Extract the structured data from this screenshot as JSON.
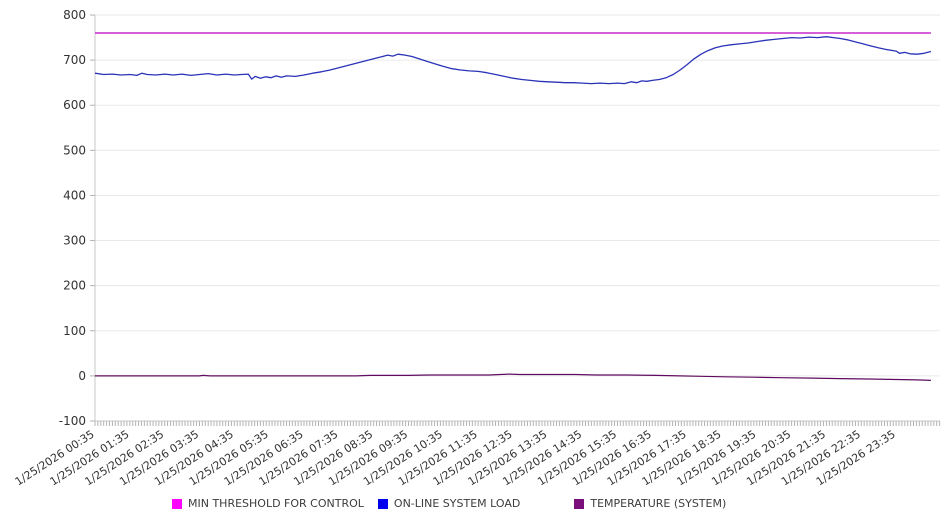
{
  "colors": {
    "background": "#ffffff",
    "grid": "#eaeaea",
    "axis_line": "#c9c9c9",
    "tick": "#b3b3b3",
    "axis_text": "#333333",
    "legend_text": "#3c3c3c"
  },
  "chart_data": {
    "type": "line",
    "title": "",
    "xlabel": "",
    "ylabel": "",
    "grid": "horizontal",
    "legend_position": "bottom",
    "x_axis": {
      "unit": "hours_from_first_label",
      "range_hours": [
        0,
        24.26
      ],
      "minor_tick_interval_minutes": 5,
      "angle_degrees": -33,
      "labels": [
        "1/25/2026 00:35",
        "1/25/2026 01:35",
        "1/25/2026 02:35",
        "1/25/2026 03:35",
        "1/25/2026 04:35",
        "1/25/2026 05:35",
        "1/25/2026 06:35",
        "1/25/2026 07:35",
        "1/25/2026 08:35",
        "1/25/2026 09:35",
        "1/25/2026 10:35",
        "1/25/2026 11:35",
        "1/25/2026 12:35",
        "1/25/2026 13:35",
        "1/25/2026 14:35",
        "1/25/2026 15:35",
        "1/25/2026 16:35",
        "1/25/2026 17:35",
        "1/25/2026 18:35",
        "1/25/2026 19:35",
        "1/25/2026 20:35",
        "1/25/2026 21:35",
        "1/25/2026 22:35",
        "1/25/2026 23:35"
      ]
    },
    "y_axis": {
      "min": -100,
      "max": 800,
      "tick_step": 100,
      "tick_labels": [
        "800",
        "700",
        "600",
        "500",
        "400",
        "300",
        "200",
        "100",
        "0",
        "-100"
      ]
    },
    "series": [
      {
        "name": "MIN THRESHOLD FOR CONTROL",
        "color": "#c92acc",
        "legend_color": "#ff00ff",
        "points": [
          [
            0,
            760
          ],
          [
            24,
            760
          ]
        ]
      },
      {
        "name": "ON-LINE SYSTEM LOAD",
        "color": "#2a33b8",
        "legend_color": "#0000ee",
        "points": [
          [
            0,
            671
          ],
          [
            0.25,
            668
          ],
          [
            0.5,
            669
          ],
          [
            0.75,
            667
          ],
          [
            1,
            668
          ],
          [
            1.2,
            666
          ],
          [
            1.35,
            671
          ],
          [
            1.5,
            668
          ],
          [
            1.75,
            667
          ],
          [
            2,
            669
          ],
          [
            2.25,
            667
          ],
          [
            2.5,
            669
          ],
          [
            2.75,
            666
          ],
          [
            3,
            668
          ],
          [
            3.25,
            670
          ],
          [
            3.5,
            667
          ],
          [
            3.75,
            669
          ],
          [
            4,
            667
          ],
          [
            4.2,
            668
          ],
          [
            4.4,
            669
          ],
          [
            4.5,
            658
          ],
          [
            4.6,
            664
          ],
          [
            4.75,
            660
          ],
          [
            4.9,
            663
          ],
          [
            5.05,
            661
          ],
          [
            5.2,
            665
          ],
          [
            5.35,
            662
          ],
          [
            5.5,
            665
          ],
          [
            5.75,
            664
          ],
          [
            6,
            667
          ],
          [
            6.25,
            671
          ],
          [
            6.5,
            674
          ],
          [
            6.75,
            678
          ],
          [
            7,
            683
          ],
          [
            7.25,
            688
          ],
          [
            7.5,
            693
          ],
          [
            7.75,
            698
          ],
          [
            8,
            703
          ],
          [
            8.2,
            707
          ],
          [
            8.4,
            711
          ],
          [
            8.55,
            709
          ],
          [
            8.7,
            713
          ],
          [
            8.9,
            711
          ],
          [
            9.1,
            708
          ],
          [
            9.3,
            703
          ],
          [
            9.5,
            698
          ],
          [
            9.75,
            692
          ],
          [
            10,
            686
          ],
          [
            10.25,
            681
          ],
          [
            10.5,
            678
          ],
          [
            10.75,
            676
          ],
          [
            11,
            675
          ],
          [
            11.25,
            672
          ],
          [
            11.5,
            668
          ],
          [
            11.75,
            664
          ],
          [
            12,
            660
          ],
          [
            12.25,
            657
          ],
          [
            12.5,
            655
          ],
          [
            12.75,
            653
          ],
          [
            13,
            652
          ],
          [
            13.25,
            651
          ],
          [
            13.5,
            650
          ],
          [
            13.75,
            650
          ],
          [
            14,
            649
          ],
          [
            14.25,
            648
          ],
          [
            14.5,
            649
          ],
          [
            14.75,
            648
          ],
          [
            15,
            649
          ],
          [
            15.2,
            648
          ],
          [
            15.4,
            652
          ],
          [
            15.55,
            650
          ],
          [
            15.7,
            654
          ],
          [
            15.85,
            653
          ],
          [
            16,
            655
          ],
          [
            16.2,
            657
          ],
          [
            16.4,
            661
          ],
          [
            16.6,
            668
          ],
          [
            16.8,
            678
          ],
          [
            17,
            690
          ],
          [
            17.2,
            703
          ],
          [
            17.4,
            713
          ],
          [
            17.6,
            721
          ],
          [
            17.8,
            727
          ],
          [
            18,
            731
          ],
          [
            18.25,
            734
          ],
          [
            18.5,
            736
          ],
          [
            18.75,
            738
          ],
          [
            19,
            741
          ],
          [
            19.25,
            744
          ],
          [
            19.5,
            746
          ],
          [
            19.75,
            748
          ],
          [
            20,
            750
          ],
          [
            20.25,
            749
          ],
          [
            20.5,
            751
          ],
          [
            20.75,
            750
          ],
          [
            21,
            752
          ],
          [
            21.2,
            750
          ],
          [
            21.4,
            748
          ],
          [
            21.6,
            745
          ],
          [
            21.8,
            741
          ],
          [
            22,
            737
          ],
          [
            22.25,
            732
          ],
          [
            22.5,
            727
          ],
          [
            22.75,
            723
          ],
          [
            23,
            720
          ],
          [
            23.1,
            715
          ],
          [
            23.25,
            717
          ],
          [
            23.4,
            714
          ],
          [
            23.6,
            713
          ],
          [
            23.8,
            715
          ],
          [
            24,
            719
          ]
        ]
      },
      {
        "name": "TEMPERATURE (SYSTEM)",
        "color": "#600b60",
        "legend_color": "#7a0e7a",
        "points": [
          [
            0,
            0
          ],
          [
            0.5,
            0
          ],
          [
            1,
            0
          ],
          [
            1.5,
            0
          ],
          [
            2,
            0
          ],
          [
            2.5,
            0
          ],
          [
            3,
            0
          ],
          [
            3.1,
            1
          ],
          [
            3.3,
            0
          ],
          [
            4,
            0
          ],
          [
            4.5,
            0
          ],
          [
            5,
            0
          ],
          [
            5.5,
            0
          ],
          [
            6,
            0
          ],
          [
            6.5,
            0
          ],
          [
            7,
            0
          ],
          [
            7.5,
            0
          ],
          [
            7.9,
            1
          ],
          [
            8.3,
            1
          ],
          [
            9,
            1
          ],
          [
            9.6,
            2
          ],
          [
            10.5,
            2
          ],
          [
            11.3,
            2
          ],
          [
            11.9,
            4
          ],
          [
            12.2,
            3
          ],
          [
            13,
            3
          ],
          [
            13.8,
            3
          ],
          [
            14.4,
            2
          ],
          [
            15.3,
            2
          ],
          [
            16.1,
            1
          ],
          [
            16.8,
            0
          ],
          [
            17.4,
            -1
          ],
          [
            18.1,
            -2
          ],
          [
            18.9,
            -3
          ],
          [
            19.7,
            -4
          ],
          [
            20.6,
            -5
          ],
          [
            21.4,
            -6
          ],
          [
            22.2,
            -7
          ],
          [
            23,
            -8
          ],
          [
            23.6,
            -9
          ],
          [
            24,
            -10
          ]
        ]
      }
    ]
  }
}
